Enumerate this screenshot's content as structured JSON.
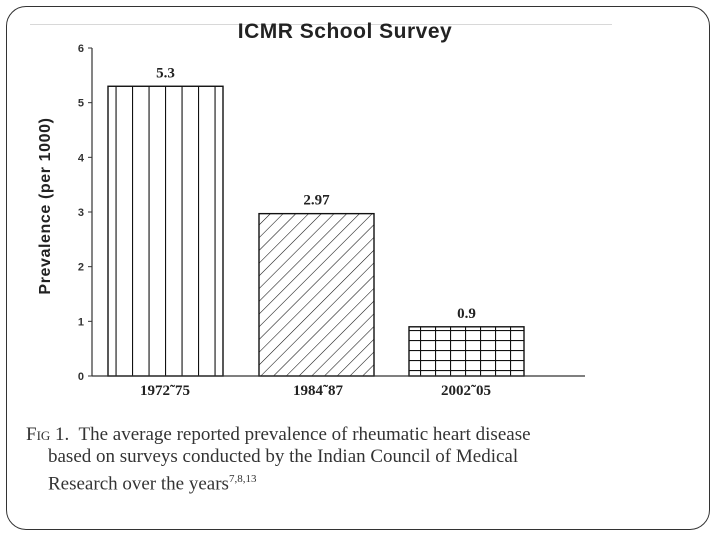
{
  "slide": {
    "caption": {
      "fig_label": "Fig 1.",
      "line1": "The average reported prevalence of rheumatic heart disease",
      "line2": "based on surveys conducted by the Indian Council of Medical",
      "line3": "Research over the years",
      "superscript": "7,8,13"
    }
  },
  "chart_data": {
    "type": "bar",
    "title": "ICMR School Survey",
    "xlabel": "",
    "ylabel": "Prevalence (per 1000)",
    "categories": [
      "1972˜75",
      "1984˜87",
      "2002˜05"
    ],
    "values": [
      5.3,
      2.97,
      0.9
    ],
    "value_labels": [
      "5.3",
      "2.97",
      "0.9"
    ],
    "patterns": [
      "vertical-lines",
      "diagonal-hatch",
      "grid"
    ],
    "ylim": [
      0,
      6
    ],
    "yticks": [
      0,
      1,
      2,
      3,
      4,
      5,
      6
    ],
    "grid": false,
    "legend": "none"
  }
}
